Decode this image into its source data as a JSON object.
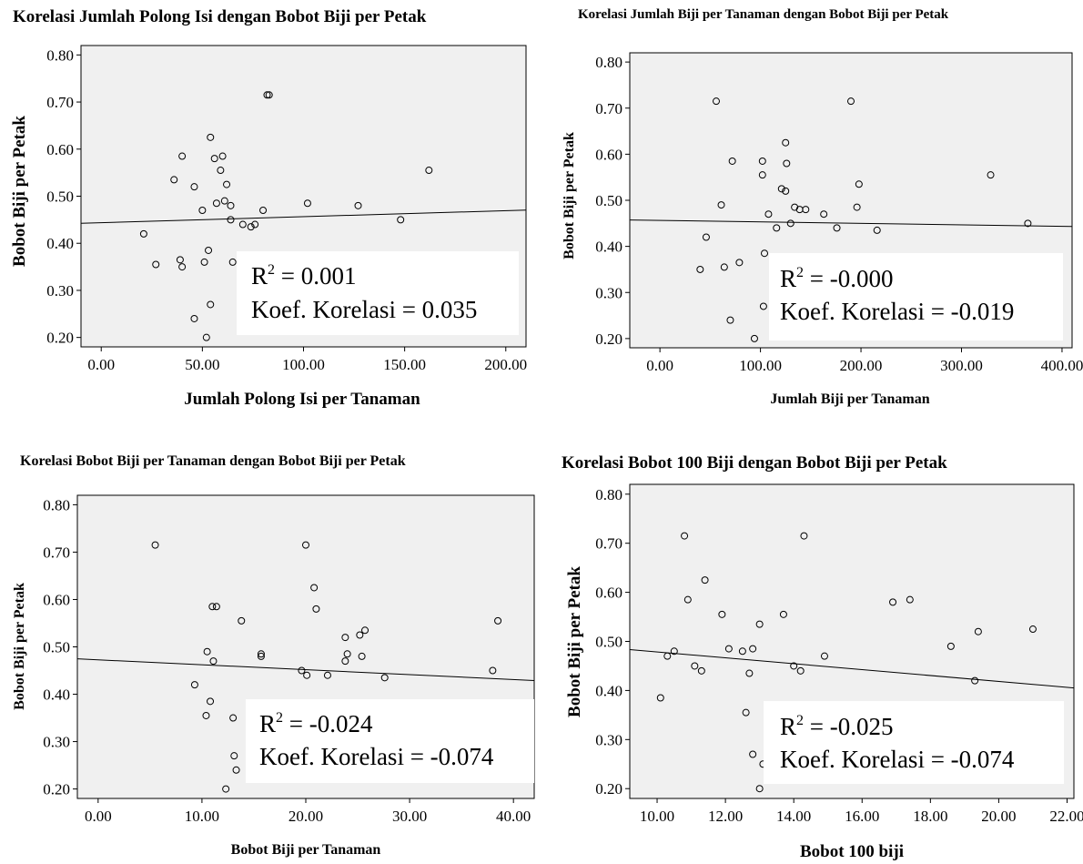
{
  "charts": [
    {
      "title": "Korelasi Jumlah Polong Isi dengan Bobot Biji per Petak",
      "xlabel": "Jumlah Polong Isi per Tanaman",
      "ylabel": "Bobot Biji per Petak",
      "r2_label": "R",
      "r2_value": " = 0.001",
      "koef_label": "Koef. Korelasi = 0.035",
      "xticks": [
        "0.00",
        "50.00",
        "100.00",
        "150.00",
        "200.00"
      ],
      "yticks": [
        "0.20",
        "0.30",
        "0.40",
        "0.50",
        "0.60",
        "0.70",
        "0.80"
      ]
    },
    {
      "title": "Korelasi Jumlah Biji per Tanaman dengan Bobot Biji per Petak",
      "xlabel": "Jumlah Biji per Tanaman",
      "ylabel": "Bobot Biji per Petak",
      "r2_label": "R",
      "r2_value": " = -0.000",
      "koef_label": "Koef. Korelasi = -0.019",
      "xticks": [
        "0.00",
        "100.00",
        "200.00",
        "300.00",
        "400.00"
      ],
      "yticks": [
        "0.20",
        "0.30",
        "0.40",
        "0.50",
        "0.60",
        "0.70",
        "0.80"
      ]
    },
    {
      "title": "Korelasi Bobot Biji per Tanaman dengan Bobot Biji per Petak",
      "xlabel": "Bobot Biji per Tanaman",
      "ylabel": "Bobot Biji per Petak",
      "r2_label": "R",
      "r2_value": " = -0.024",
      "koef_label": "Koef. Korelasi = -0.074",
      "xticks": [
        "0.00",
        "10.00",
        "20.00",
        "30.00",
        "40.00"
      ],
      "yticks": [
        "0.20",
        "0.30",
        "0.40",
        "0.50",
        "0.60",
        "0.70",
        "0.80"
      ]
    },
    {
      "title": "Korelasi Bobot 100 Biji dengan Bobot Biji per Petak",
      "xlabel": "Bobot 100 biji",
      "ylabel": "Bobot Biji per Petak",
      "r2_label": "R",
      "r2_value": " = -0.025",
      "koef_label": "Koef. Korelasi = -0.074",
      "xticks": [
        "10.00",
        "12.00",
        "14.00",
        "16.00",
        "18.00",
        "20.00",
        "22.00"
      ],
      "yticks": [
        "0.20",
        "0.30",
        "0.40",
        "0.50",
        "0.60",
        "0.70",
        "0.80"
      ]
    }
  ],
  "chart_data": [
    {
      "type": "scatter",
      "title": "Korelasi Jumlah Polong Isi dengan Bobot Biji per Petak",
      "xlabel": "Jumlah Polong Isi per Tanaman",
      "ylabel": "Bobot Biji per Petak",
      "xlim": [
        -10,
        210
      ],
      "ylim": [
        0.18,
        0.82
      ],
      "grid": false,
      "points": [
        [
          21,
          0.42
        ],
        [
          27,
          0.355
        ],
        [
          36,
          0.535
        ],
        [
          39,
          0.365
        ],
        [
          40,
          0.35
        ],
        [
          40,
          0.585
        ],
        [
          46,
          0.24
        ],
        [
          46,
          0.52
        ],
        [
          50,
          0.47
        ],
        [
          51,
          0.36
        ],
        [
          52,
          0.2
        ],
        [
          53,
          0.385
        ],
        [
          54,
          0.625
        ],
        [
          54,
          0.27
        ],
        [
          56,
          0.58
        ],
        [
          57,
          0.485
        ],
        [
          59,
          0.555
        ],
        [
          60,
          0.585
        ],
        [
          61,
          0.49
        ],
        [
          62,
          0.525
        ],
        [
          64,
          0.48
        ],
        [
          64,
          0.45
        ],
        [
          65,
          0.36
        ],
        [
          70,
          0.44
        ],
        [
          74,
          0.435
        ],
        [
          76,
          0.44
        ],
        [
          80,
          0.47
        ],
        [
          82,
          0.715
        ],
        [
          83,
          0.715
        ],
        [
          102,
          0.485
        ],
        [
          127,
          0.48
        ],
        [
          148,
          0.45
        ],
        [
          162,
          0.555
        ]
      ],
      "trendline": [
        [
          -10,
          0.4425
        ],
        [
          210,
          0.4705
        ]
      ],
      "r2": 0.001,
      "koef_korelasi": 0.035
    },
    {
      "type": "scatter",
      "title": "Korelasi Jumlah Biji per Tanaman dengan Bobot Biji per Petak",
      "xlabel": "Jumlah Biji per Tanaman",
      "ylabel": "Bobot Biji per Petak",
      "xlim": [
        -30,
        410
      ],
      "ylim": [
        0.18,
        0.82
      ],
      "grid": false,
      "points": [
        [
          40,
          0.35
        ],
        [
          46,
          0.42
        ],
        [
          56,
          0.715
        ],
        [
          61,
          0.49
        ],
        [
          64,
          0.355
        ],
        [
          70,
          0.24
        ],
        [
          72,
          0.585
        ],
        [
          79,
          0.365
        ],
        [
          94,
          0.2
        ],
        [
          102,
          0.585
        ],
        [
          102,
          0.555
        ],
        [
          103,
          0.27
        ],
        [
          104,
          0.385
        ],
        [
          108,
          0.47
        ],
        [
          116,
          0.44
        ],
        [
          121,
          0.525
        ],
        [
          125,
          0.52
        ],
        [
          125,
          0.625
        ],
        [
          126,
          0.58
        ],
        [
          130,
          0.45
        ],
        [
          134,
          0.485
        ],
        [
          139,
          0.48
        ],
        [
          145,
          0.48
        ],
        [
          163,
          0.47
        ],
        [
          176,
          0.44
        ],
        [
          190,
          0.715
        ],
        [
          196,
          0.485
        ],
        [
          198,
          0.535
        ],
        [
          216,
          0.435
        ],
        [
          329,
          0.555
        ],
        [
          366,
          0.45
        ]
      ],
      "trendline": [
        [
          -30,
          0.4573
        ],
        [
          410,
          0.4433
        ]
      ],
      "r2": -0.0,
      "koef_korelasi": -0.019
    },
    {
      "type": "scatter",
      "title": "Korelasi Bobot Biji per Tanaman dengan Bobot Biji per Petak",
      "xlabel": "Bobot Biji per Tanaman",
      "ylabel": "Bobot Biji per Petak",
      "xlim": [
        -2,
        42
      ],
      "ylim": [
        0.18,
        0.82
      ],
      "grid": false,
      "points": [
        [
          5.5,
          0.715
        ],
        [
          9.3,
          0.42
        ],
        [
          10.4,
          0.355
        ],
        [
          10.5,
          0.49
        ],
        [
          10.8,
          0.385
        ],
        [
          11.0,
          0.585
        ],
        [
          11.1,
          0.47
        ],
        [
          11.4,
          0.585
        ],
        [
          12.3,
          0.2
        ],
        [
          13.0,
          0.35
        ],
        [
          13.1,
          0.27
        ],
        [
          13.3,
          0.24
        ],
        [
          13.8,
          0.555
        ],
        [
          15.7,
          0.485
        ],
        [
          15.7,
          0.48
        ],
        [
          19.6,
          0.45
        ],
        [
          20.0,
          0.715
        ],
        [
          20.1,
          0.44
        ],
        [
          20.8,
          0.625
        ],
        [
          21.0,
          0.58
        ],
        [
          22.1,
          0.44
        ],
        [
          23.8,
          0.52
        ],
        [
          23.8,
          0.47
        ],
        [
          24.0,
          0.485
        ],
        [
          25.2,
          0.525
        ],
        [
          25.4,
          0.48
        ],
        [
          25.7,
          0.535
        ],
        [
          27.6,
          0.435
        ],
        [
          38.0,
          0.45
        ],
        [
          38.5,
          0.555
        ]
      ],
      "trendline": [
        [
          -2,
          0.4747
        ],
        [
          42,
          0.4289
        ]
      ],
      "r2": -0.024,
      "koef_korelasi": -0.074
    },
    {
      "type": "scatter",
      "title": "Korelasi Bobot 100 Biji dengan Bobot Biji per Petak",
      "xlabel": "Bobot 100 biji",
      "ylabel": "Bobot Biji per Petak",
      "xlim": [
        9.2,
        22.2
      ],
      "ylim": [
        0.18,
        0.82
      ],
      "grid": false,
      "points": [
        [
          10.1,
          0.385
        ],
        [
          10.3,
          0.47
        ],
        [
          10.5,
          0.48
        ],
        [
          10.8,
          0.715
        ],
        [
          10.9,
          0.585
        ],
        [
          11.1,
          0.45
        ],
        [
          11.3,
          0.44
        ],
        [
          11.4,
          0.625
        ],
        [
          11.9,
          0.555
        ],
        [
          12.1,
          0.485
        ],
        [
          12.5,
          0.48
        ],
        [
          12.6,
          0.355
        ],
        [
          12.7,
          0.435
        ],
        [
          12.8,
          0.485
        ],
        [
          12.8,
          0.27
        ],
        [
          13.0,
          0.535
        ],
        [
          13.0,
          0.2
        ],
        [
          13.1,
          0.25
        ],
        [
          13.7,
          0.555
        ],
        [
          14.0,
          0.45
        ],
        [
          14.2,
          0.44
        ],
        [
          14.3,
          0.715
        ],
        [
          14.9,
          0.47
        ],
        [
          16.9,
          0.58
        ],
        [
          17.4,
          0.585
        ],
        [
          18.6,
          0.49
        ],
        [
          19.3,
          0.42
        ],
        [
          19.4,
          0.52
        ],
        [
          21.0,
          0.525
        ]
      ],
      "trendline": [
        [
          9.2,
          0.4834
        ],
        [
          22.2,
          0.4052
        ]
      ],
      "r2": -0.025,
      "koef_korelasi": -0.074
    }
  ]
}
